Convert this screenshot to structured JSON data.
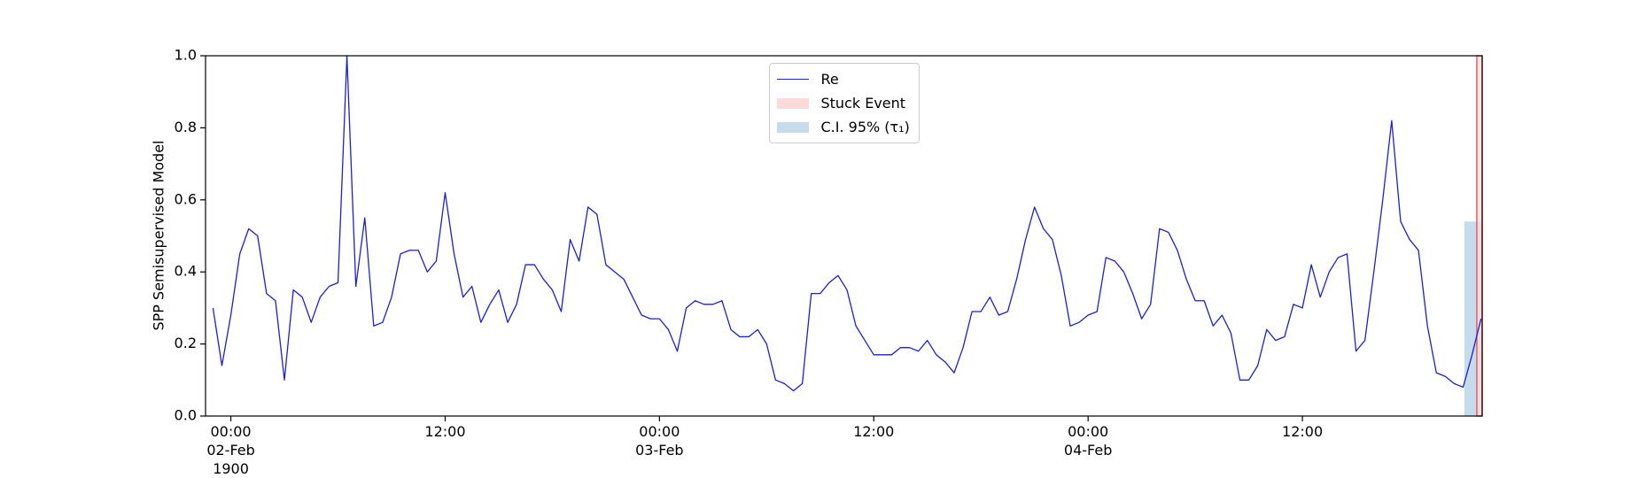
{
  "chart_data": {
    "type": "line",
    "y_label": "SPP Semisupervised Model",
    "x": [
      "1900-02-01T23:00",
      "1900-02-01T23:30",
      "1900-02-02T00:00",
      "1900-02-02T00:30",
      "1900-02-02T01:00",
      "1900-02-02T01:30",
      "1900-02-02T02:00",
      "1900-02-02T02:30",
      "1900-02-02T03:00",
      "1900-02-02T03:30",
      "1900-02-02T04:00",
      "1900-02-02T04:30",
      "1900-02-02T05:00",
      "1900-02-02T05:30",
      "1900-02-02T06:00",
      "1900-02-02T06:30",
      "1900-02-02T07:00",
      "1900-02-02T07:30",
      "1900-02-02T08:00",
      "1900-02-02T08:30",
      "1900-02-02T09:00",
      "1900-02-02T09:30",
      "1900-02-02T10:00",
      "1900-02-02T10:30",
      "1900-02-02T11:00",
      "1900-02-02T11:30",
      "1900-02-02T12:00",
      "1900-02-02T12:30",
      "1900-02-02T13:00",
      "1900-02-02T13:30",
      "1900-02-02T14:00",
      "1900-02-02T14:30",
      "1900-02-02T15:00",
      "1900-02-02T15:30",
      "1900-02-02T16:00",
      "1900-02-02T16:30",
      "1900-02-02T17:00",
      "1900-02-02T17:30",
      "1900-02-02T18:00",
      "1900-02-02T18:30",
      "1900-02-02T19:00",
      "1900-02-02T19:30",
      "1900-02-02T20:00",
      "1900-02-02T20:30",
      "1900-02-02T21:00",
      "1900-02-02T21:30",
      "1900-02-02T22:00",
      "1900-02-02T22:30",
      "1900-02-02T23:00",
      "1900-02-02T23:30",
      "1900-02-03T00:00",
      "1900-02-03T00:30",
      "1900-02-03T01:00",
      "1900-02-03T01:30",
      "1900-02-03T02:00",
      "1900-02-03T02:30",
      "1900-02-03T03:00",
      "1900-02-03T03:30",
      "1900-02-03T04:00",
      "1900-02-03T04:30",
      "1900-02-03T05:00",
      "1900-02-03T05:30",
      "1900-02-03T06:00",
      "1900-02-03T06:30",
      "1900-02-03T07:00",
      "1900-02-03T07:30",
      "1900-02-03T08:00",
      "1900-02-03T08:30",
      "1900-02-03T09:00",
      "1900-02-03T09:30",
      "1900-02-03T10:00",
      "1900-02-03T10:30",
      "1900-02-03T11:00",
      "1900-02-03T11:30",
      "1900-02-03T12:00",
      "1900-02-03T12:30",
      "1900-02-03T13:00",
      "1900-02-03T13:30",
      "1900-02-03T14:00",
      "1900-02-03T14:30",
      "1900-02-03T15:00",
      "1900-02-03T15:30",
      "1900-02-03T16:00",
      "1900-02-03T16:30",
      "1900-02-03T17:00",
      "1900-02-03T17:30",
      "1900-02-03T18:00",
      "1900-02-03T18:30",
      "1900-02-03T19:00",
      "1900-02-03T19:30",
      "1900-02-03T20:00",
      "1900-02-03T20:30",
      "1900-02-03T21:00",
      "1900-02-03T21:30",
      "1900-02-03T22:00",
      "1900-02-03T22:30",
      "1900-02-03T23:00",
      "1900-02-03T23:30",
      "1900-02-04T00:00",
      "1900-02-04T00:30",
      "1900-02-04T01:00",
      "1900-02-04T01:30",
      "1900-02-04T02:00",
      "1900-02-04T02:30",
      "1900-02-04T03:00",
      "1900-02-04T03:30",
      "1900-02-04T04:00",
      "1900-02-04T04:30",
      "1900-02-04T05:00",
      "1900-02-04T05:30",
      "1900-02-04T06:00",
      "1900-02-04T06:30",
      "1900-02-04T07:00",
      "1900-02-04T07:30",
      "1900-02-04T08:00",
      "1900-02-04T08:30",
      "1900-02-04T09:00",
      "1900-02-04T09:30",
      "1900-02-04T10:00",
      "1900-02-04T10:30",
      "1900-02-04T11:00",
      "1900-02-04T11:30",
      "1900-02-04T12:00",
      "1900-02-04T12:30",
      "1900-02-04T13:00",
      "1900-02-04T13:30",
      "1900-02-04T14:00",
      "1900-02-04T14:30",
      "1900-02-04T15:00",
      "1900-02-04T15:30",
      "1900-02-04T16:00",
      "1900-02-04T16:30",
      "1900-02-04T17:00",
      "1900-02-04T17:30",
      "1900-02-04T18:00",
      "1900-02-04T18:30",
      "1900-02-04T19:00",
      "1900-02-04T19:30",
      "1900-02-04T20:00",
      "1900-02-04T20:30",
      "1900-02-04T21:00",
      "1900-02-04T21:30",
      "1900-02-04T22:00"
    ],
    "series": [
      {
        "name": "Re",
        "color": "#1f1fcc",
        "values": [
          0.3,
          0.14,
          0.28,
          0.45,
          0.52,
          0.5,
          0.34,
          0.32,
          0.1,
          0.35,
          0.33,
          0.26,
          0.33,
          0.36,
          0.37,
          1.0,
          0.36,
          0.55,
          0.25,
          0.26,
          0.33,
          0.45,
          0.46,
          0.46,
          0.4,
          0.43,
          0.62,
          0.45,
          0.33,
          0.36,
          0.26,
          0.31,
          0.35,
          0.26,
          0.31,
          0.42,
          0.42,
          0.38,
          0.35,
          0.29,
          0.49,
          0.43,
          0.58,
          0.56,
          0.42,
          0.4,
          0.38,
          0.33,
          0.28,
          0.27,
          0.27,
          0.24,
          0.18,
          0.3,
          0.32,
          0.31,
          0.31,
          0.32,
          0.24,
          0.22,
          0.22,
          0.24,
          0.2,
          0.1,
          0.09,
          0.07,
          0.09,
          0.34,
          0.34,
          0.37,
          0.39,
          0.35,
          0.25,
          0.21,
          0.17,
          0.17,
          0.17,
          0.19,
          0.19,
          0.18,
          0.21,
          0.17,
          0.15,
          0.12,
          0.19,
          0.29,
          0.29,
          0.33,
          0.28,
          0.29,
          0.38,
          0.49,
          0.58,
          0.52,
          0.49,
          0.39,
          0.25,
          0.26,
          0.28,
          0.29,
          0.44,
          0.43,
          0.4,
          0.34,
          0.27,
          0.31,
          0.52,
          0.51,
          0.46,
          0.38,
          0.32,
          0.32,
          0.25,
          0.28,
          0.23,
          0.1,
          0.1,
          0.14,
          0.24,
          0.21,
          0.22,
          0.31,
          0.3,
          0.42,
          0.33,
          0.4,
          0.44,
          0.45,
          0.18,
          0.21,
          0.4,
          0.6,
          0.82,
          0.54,
          0.49,
          0.46,
          0.25,
          0.12,
          0.11,
          0.09,
          0.08,
          0.17,
          0.27
        ]
      }
    ],
    "spans": [
      {
        "name": "Stuck Event",
        "color": "#fcdada",
        "edgecolor": "#e06464",
        "x": [
          "1900-02-04T21:46",
          "1900-02-04T22:04"
        ]
      }
    ],
    "bands": [
      {
        "name": "C.I. 95% (τ₁)",
        "color": "#c6dbec",
        "x": [
          "1900-02-04T21:04",
          "1900-02-04T22:04"
        ],
        "y": [
          0,
          0.54
        ]
      }
    ],
    "xlim": [
      "1900-02-01T22:35",
      "1900-02-04T22:04"
    ],
    "xticks": [
      {
        "value": "1900-02-02T00:00",
        "label": "00:00\n02-Feb\n1900"
      },
      {
        "value": "1900-02-02T12:00",
        "label": "12:00"
      },
      {
        "value": "1900-02-03T00:00",
        "label": "00:00\n03-Feb"
      },
      {
        "value": "1900-02-03T12:00",
        "label": "12:00"
      },
      {
        "value": "1900-02-04T00:00",
        "label": "00:00\n04-Feb"
      },
      {
        "value": "1900-02-04T12:00",
        "label": "12:00"
      }
    ],
    "ylim": [
      0,
      1
    ],
    "yticks": [
      {
        "value": 0,
        "label": "0.0"
      },
      0.2,
      0.4,
      0.6,
      0.8,
      {
        "value": 1,
        "label": "1.0"
      }
    ],
    "legend": "upper center"
  }
}
